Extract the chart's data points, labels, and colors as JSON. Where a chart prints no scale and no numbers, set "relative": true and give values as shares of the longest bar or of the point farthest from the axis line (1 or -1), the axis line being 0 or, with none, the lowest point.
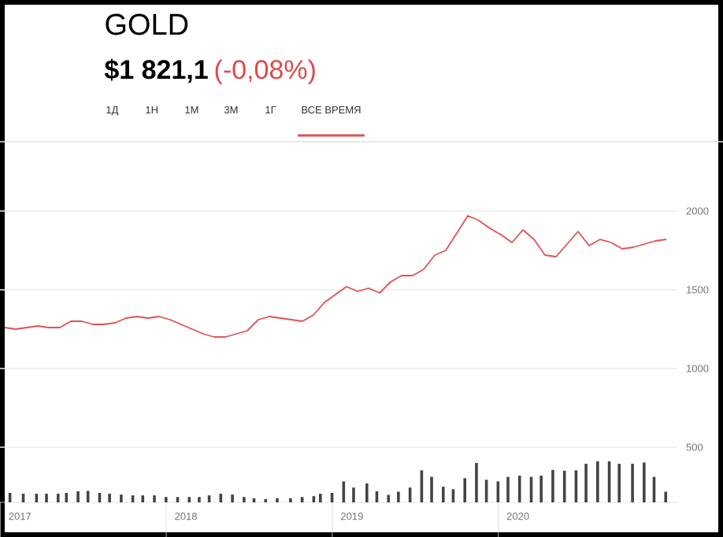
{
  "chart_data": [
    {
      "type": "line",
      "title": "GOLD",
      "subtitle": "$1 821,1",
      "annotations": [
        "(-0,08%)",
        "1Д",
        "1Н",
        "1М",
        "3М",
        "1Г",
        "ВСЕ ВРЕМЯ"
      ],
      "categories": [
        null,
        null,
        null,
        null,
        null,
        null,
        null,
        null,
        null,
        null,
        null,
        null,
        null,
        null,
        null,
        null,
        null,
        null,
        null,
        null,
        null,
        null,
        null,
        null,
        null,
        null,
        null,
        null,
        null,
        null,
        null,
        null,
        null,
        null,
        null,
        null,
        null,
        null,
        null,
        null,
        null,
        null,
        null,
        null,
        null,
        null,
        null,
        null,
        null,
        null,
        null,
        null,
        null,
        null,
        null,
        null,
        null,
        null,
        null,
        null,
        null
      ],
      "series": [
        {
          "color": "#e05252",
          "values": [
            1260,
            1250,
            1260,
            1270,
            1260,
            1260,
            1300,
            1300,
            1280,
            1280,
            1290,
            1320,
            1330,
            1320,
            1330,
            1310,
            1280,
            1250,
            1220,
            1200,
            1200,
            1220,
            1240,
            1310,
            1330,
            1320,
            1310,
            1300,
            1340,
            1420,
            1470,
            1520,
            1490,
            1510,
            1480,
            1550,
            1590,
            1590,
            1630,
            1720,
            1750,
            1860,
            1970,
            1940,
            1890,
            1850,
            1800,
            1880,
            1820,
            1720,
            1710,
            1790,
            1870,
            1780,
            1820,
            1800,
            1760,
            1770,
            1790,
            1810,
            1820
          ]
        }
      ],
      "ylim": [
        500,
        2000
      ],
      "yticks": [
        500,
        1000,
        1500,
        2000
      ],
      "grid": "y",
      "tick_labels": "y"
    },
    {
      "type": "bar",
      "relative": true,
      "x": [
        2016.94,
        2017.02,
        2017.1,
        2017.16,
        2017.23,
        2017.28,
        2017.35,
        2017.41,
        2017.48,
        2017.54,
        2017.61,
        2017.68,
        2017.74,
        2017.81,
        2017.88,
        2017.95,
        2018.02,
        2018.08,
        2018.14,
        2018.21,
        2018.28,
        2018.35,
        2018.41,
        2018.48,
        2018.55,
        2018.63,
        2018.7,
        2018.77,
        2018.81,
        2018.88,
        2018.95,
        2019.01,
        2019.09,
        2019.15,
        2019.22,
        2019.28,
        2019.35,
        2019.42,
        2019.48,
        2019.55,
        2019.61,
        2019.68,
        2019.75,
        2019.81,
        2019.88,
        2019.94,
        2020.01,
        2020.08,
        2020.14,
        2020.21,
        2020.28,
        2020.35,
        2020.41,
        2020.48,
        2020.55,
        2020.61,
        2020.69,
        2020.76,
        2020.82,
        2020.89
      ],
      "series": [
        {
          "color": "#444444",
          "values": [
            0.23,
            0.21,
            0.21,
            0.21,
            0.21,
            0.23,
            0.27,
            0.28,
            0.23,
            0.21,
            0.19,
            0.17,
            0.17,
            0.17,
            0.13,
            0.13,
            0.13,
            0.13,
            0.17,
            0.21,
            0.19,
            0.13,
            0.1,
            0.08,
            0.1,
            0.1,
            0.13,
            0.15,
            0.21,
            0.23,
            0.51,
            0.36,
            0.46,
            0.27,
            0.18,
            0.26,
            0.36,
            0.78,
            0.62,
            0.38,
            0.32,
            0.59,
            0.96,
            0.55,
            0.51,
            0.62,
            0.65,
            0.62,
            0.65,
            0.79,
            0.77,
            0.78,
            0.94,
            1,
            1,
            0.94,
            0.94,
            0.97,
            0.62,
            0.26
          ]
        }
      ],
      "xlim": [
        2016.88,
        2020.96
      ],
      "xticks": [
        2017,
        2018,
        2019,
        2020
      ],
      "tick_labels": "x"
    }
  ]
}
